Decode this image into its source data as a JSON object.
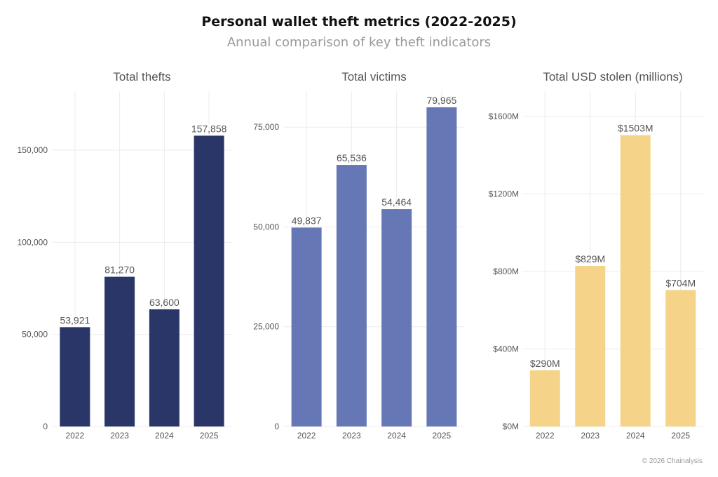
{
  "title": "Personal wallet theft metrics (2022-2025)",
  "subtitle": "Annual comparison of key theft indicators",
  "credit": "© 2026 Chainalysis",
  "chart_data": [
    {
      "type": "bar",
      "title": "Total thefts",
      "categories": [
        "2022",
        "2023",
        "2024",
        "2025"
      ],
      "values": [
        53921,
        81270,
        63600,
        157858
      ],
      "data_labels": [
        "53,921",
        "81,270",
        "63,600",
        "157,858"
      ],
      "yticks": [
        0,
        50000,
        100000,
        150000
      ],
      "ytick_labels": [
        "0",
        "50,000",
        "100,000",
        "150,000"
      ],
      "ylim": [
        0,
        182000
      ],
      "color": "#2b3668",
      "grid": true
    },
    {
      "type": "bar",
      "title": "Total victims",
      "categories": [
        "2022",
        "2023",
        "2024",
        "2025"
      ],
      "values": [
        49837,
        65536,
        54464,
        79965
      ],
      "data_labels": [
        "49,837",
        "65,536",
        "54,464",
        "79,965"
      ],
      "yticks": [
        0,
        25000,
        50000,
        75000
      ],
      "ytick_labels": [
        "0",
        "25,000",
        "50,000",
        "75,000"
      ],
      "ylim": [
        0,
        84000
      ],
      "color": "#6677b5",
      "grid": true
    },
    {
      "type": "bar",
      "title": "Total USD stolen (millions)",
      "categories": [
        "2022",
        "2023",
        "2024",
        "2025"
      ],
      "values": [
        290,
        829,
        1503,
        704
      ],
      "data_labels": [
        "$290M",
        "$829M",
        "$1503M",
        "$704M"
      ],
      "yticks": [
        0,
        400,
        800,
        1200,
        1600
      ],
      "ytick_labels": [
        "$0M",
        "$400M",
        "$800M",
        "$1200M",
        "$1600M"
      ],
      "ylim": [
        0,
        1730
      ],
      "color": "#f5d48a",
      "grid": true
    }
  ]
}
